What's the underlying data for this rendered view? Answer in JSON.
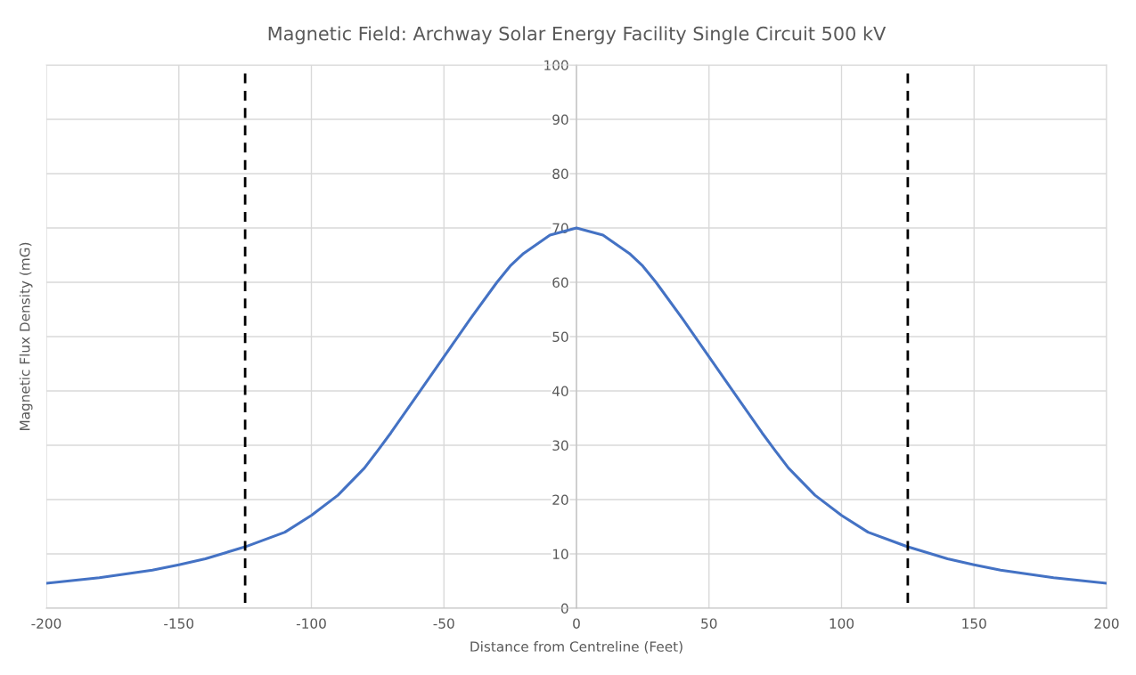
{
  "chart_data": {
    "type": "line",
    "title": "Magnetic Field: Archway Solar Energy Facility Single Circuit 500 kV",
    "xlabel": "Distance from Centreline (Feet)",
    "ylabel": "Magnetic Flux Density (mG)",
    "x": [
      -200,
      -180,
      -160,
      -150,
      -140,
      -125,
      -110,
      -100,
      -90,
      -80,
      -75,
      -70,
      -60,
      -50,
      -40,
      -30,
      -25,
      -20,
      -10,
      0,
      10,
      20,
      25,
      30,
      40,
      50,
      60,
      70,
      75,
      80,
      90,
      100,
      110,
      125,
      140,
      150,
      160,
      180,
      200
    ],
    "series": [
      {
        "color": "#4472c4",
        "values": [
          4.6,
          5.6,
          7.0,
          8.0,
          9.1,
          11.3,
          14.0,
          17.1,
          20.8,
          25.8,
          29.0,
          32.3,
          39.3,
          46.3,
          53.3,
          60.0,
          63.0,
          65.3,
          68.7,
          70.0,
          68.7,
          65.3,
          63.0,
          60.0,
          53.3,
          46.3,
          39.3,
          32.3,
          29.0,
          25.8,
          20.8,
          17.1,
          14.0,
          11.3,
          9.1,
          8.0,
          7.0,
          5.6,
          4.6
        ]
      }
    ],
    "xlim": [
      -200,
      200
    ],
    "xticks": [
      -200,
      -150,
      -100,
      -50,
      0,
      50,
      100,
      150,
      200
    ],
    "ylim": [
      0,
      100
    ],
    "yticks": [
      0,
      10,
      20,
      30,
      40,
      50,
      60,
      70,
      80,
      90,
      100
    ],
    "grid": true,
    "marker": "none",
    "line_style": "solid",
    "ref_lines": [
      {
        "axis": "x",
        "value": -125,
        "color": "#000000",
        "line_style": "dashed"
      },
      {
        "axis": "x",
        "value": 125,
        "color": "#000000",
        "line_style": "dashed"
      }
    ]
  }
}
